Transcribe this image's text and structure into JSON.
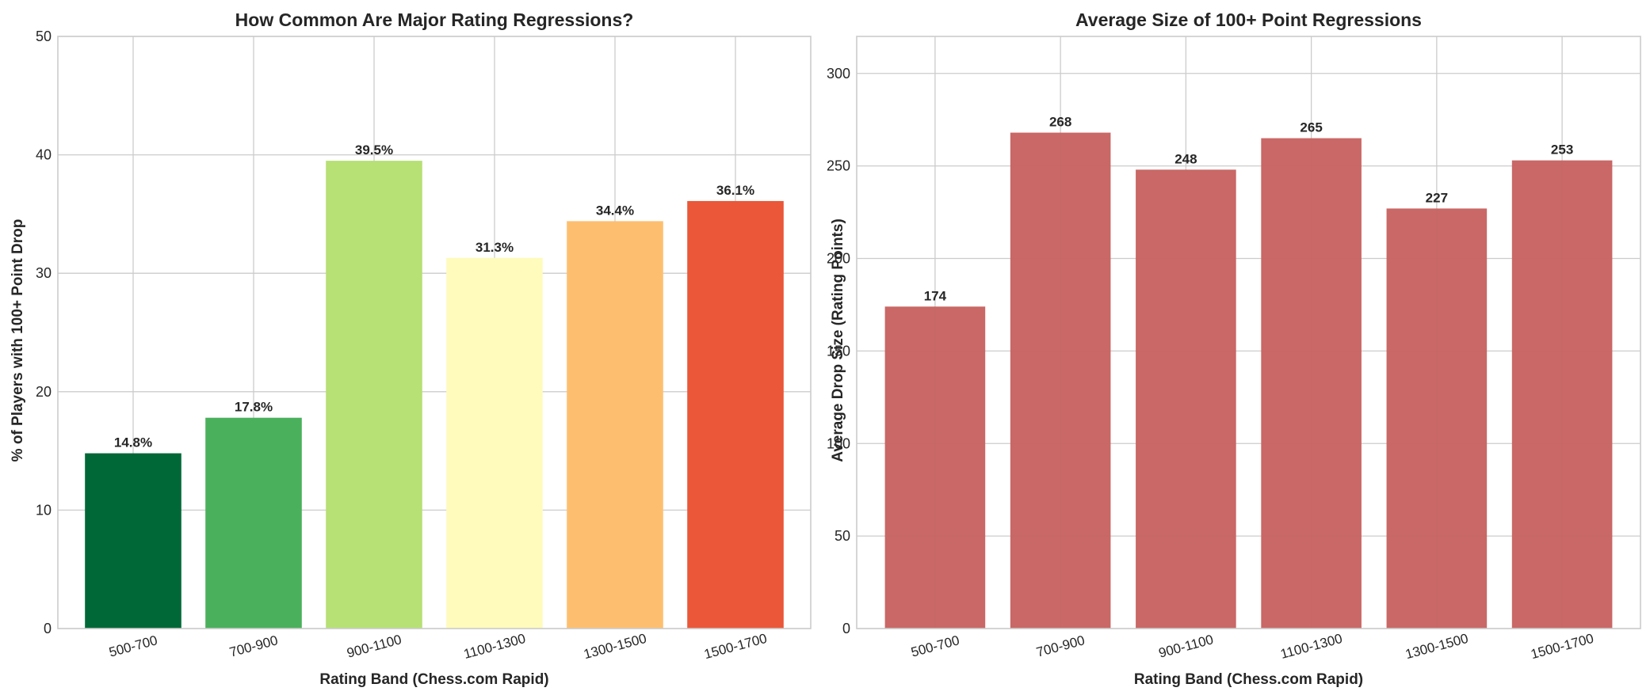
{
  "chart_data": [
    {
      "type": "bar",
      "title": "How Common Are Major Rating Regressions?",
      "xlabel": "Rating Band (Chess.com Rapid)",
      "ylabel": "% of Players with 100+ Point Drop",
      "categories": [
        "500-700",
        "700-900",
        "900-1100",
        "1100-1300",
        "1300-1500",
        "1500-1700"
      ],
      "values": [
        14.8,
        17.8,
        39.5,
        31.3,
        34.4,
        36.1
      ],
      "data_labels": [
        "14.8%",
        "17.8%",
        "39.5%",
        "31.3%",
        "34.4%",
        "36.1%"
      ],
      "colors": [
        "#006837",
        "#4bb05c",
        "#b7e075",
        "#fefbbd",
        "#fdbf6f",
        "#ea5739"
      ],
      "ylim": [
        0,
        50
      ],
      "yticks": [
        0,
        10,
        20,
        30,
        40,
        50
      ],
      "grid": true
    },
    {
      "type": "bar",
      "title": "Average Size of 100+ Point Regressions",
      "xlabel": "Rating Band (Chess.com Rapid)",
      "ylabel": "Average Drop Size (Rating Points)",
      "categories": [
        "500-700",
        "700-900",
        "900-1100",
        "1100-1300",
        "1300-1500",
        "1500-1700"
      ],
      "values": [
        174,
        268,
        248,
        265,
        227,
        253
      ],
      "data_labels": [
        "174",
        "268",
        "248",
        "265",
        "227",
        "253"
      ],
      "colors": [
        "#c86563",
        "#c86563",
        "#c86563",
        "#c86563",
        "#c86563",
        "#c86563"
      ],
      "ylim": [
        0,
        320
      ],
      "yticks": [
        0,
        50,
        100,
        150,
        200,
        250,
        300
      ],
      "grid": true
    }
  ]
}
